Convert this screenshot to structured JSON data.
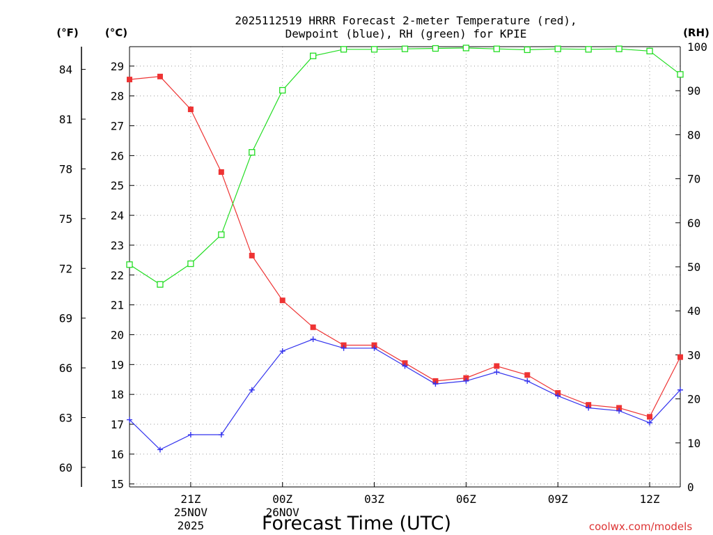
{
  "chart_data": {
    "type": "line",
    "title_line1": "2025112519 HRRR Forecast 2-meter Temperature (red),",
    "title_line2": "Dewpoint (blue), RH (green) for KPIE",
    "xlabel": "Forecast Time (UTC)",
    "watermark": "coolwx.com/models",
    "axis_units": {
      "fahrenheit": "(°F)",
      "celsius": "(°C)",
      "rh": "(RH)"
    },
    "hours": [
      19,
      20,
      21,
      22,
      23,
      24,
      25,
      26,
      27,
      28,
      29,
      30,
      31,
      32,
      33,
      34,
      35,
      36,
      37
    ],
    "x_ticks": [
      {
        "hour": 21,
        "label": "21Z",
        "sub1": "25NOV",
        "sub2": "2025"
      },
      {
        "hour": 24,
        "label": "00Z",
        "sub1": "26NOV",
        "sub2": ""
      },
      {
        "hour": 27,
        "label": "03Z",
        "sub1": "",
        "sub2": ""
      },
      {
        "hour": 30,
        "label": "06Z",
        "sub1": "",
        "sub2": ""
      },
      {
        "hour": 33,
        "label": "09Z",
        "sub1": "",
        "sub2": ""
      },
      {
        "hour": 36,
        "label": "12Z",
        "sub1": "",
        "sub2": ""
      }
    ],
    "celsius_range": [
      14.9,
      29.65
    ],
    "celsius_ticks": [
      "15",
      "16",
      "17",
      "18",
      "19",
      "20",
      "21",
      "22",
      "23",
      "24",
      "25",
      "26",
      "27",
      "28",
      "29"
    ],
    "fahrenheit_ticks": [
      "60",
      "63",
      "66",
      "69",
      "72",
      "75",
      "78",
      "81",
      "84"
    ],
    "rh_range": [
      0,
      100
    ],
    "rh_ticks": [
      "0",
      "10",
      "20",
      "30",
      "40",
      "50",
      "60",
      "70",
      "80",
      "90",
      "100"
    ],
    "series": [
      {
        "name": "Temperature",
        "color": "#ee3333",
        "marker": "filled-square",
        "values": [
          28.55,
          28.65,
          27.55,
          25.45,
          22.65,
          21.15,
          20.25,
          19.65,
          19.65,
          19.05,
          18.45,
          18.55,
          18.95,
          18.65,
          18.05,
          17.65,
          17.55,
          17.25,
          19.25
        ]
      },
      {
        "name": "Dewpoint",
        "color": "#3333ee",
        "marker": "plus",
        "values": [
          17.15,
          16.15,
          16.65,
          16.65,
          18.15,
          19.45,
          19.85,
          19.55,
          19.55,
          18.95,
          18.35,
          18.45,
          18.75,
          18.45,
          17.95,
          17.55,
          17.45,
          17.05,
          18.15
        ]
      },
      {
        "name": "RH",
        "color": "#22dd22",
        "marker": "open-square",
        "values": [
          50.5,
          46.0,
          50.7,
          57.3,
          76.0,
          90.1,
          97.9,
          99.4,
          99.4,
          99.5,
          99.6,
          99.7,
          99.5,
          99.3,
          99.5,
          99.4,
          99.5,
          99.0,
          93.7
        ]
      }
    ]
  }
}
